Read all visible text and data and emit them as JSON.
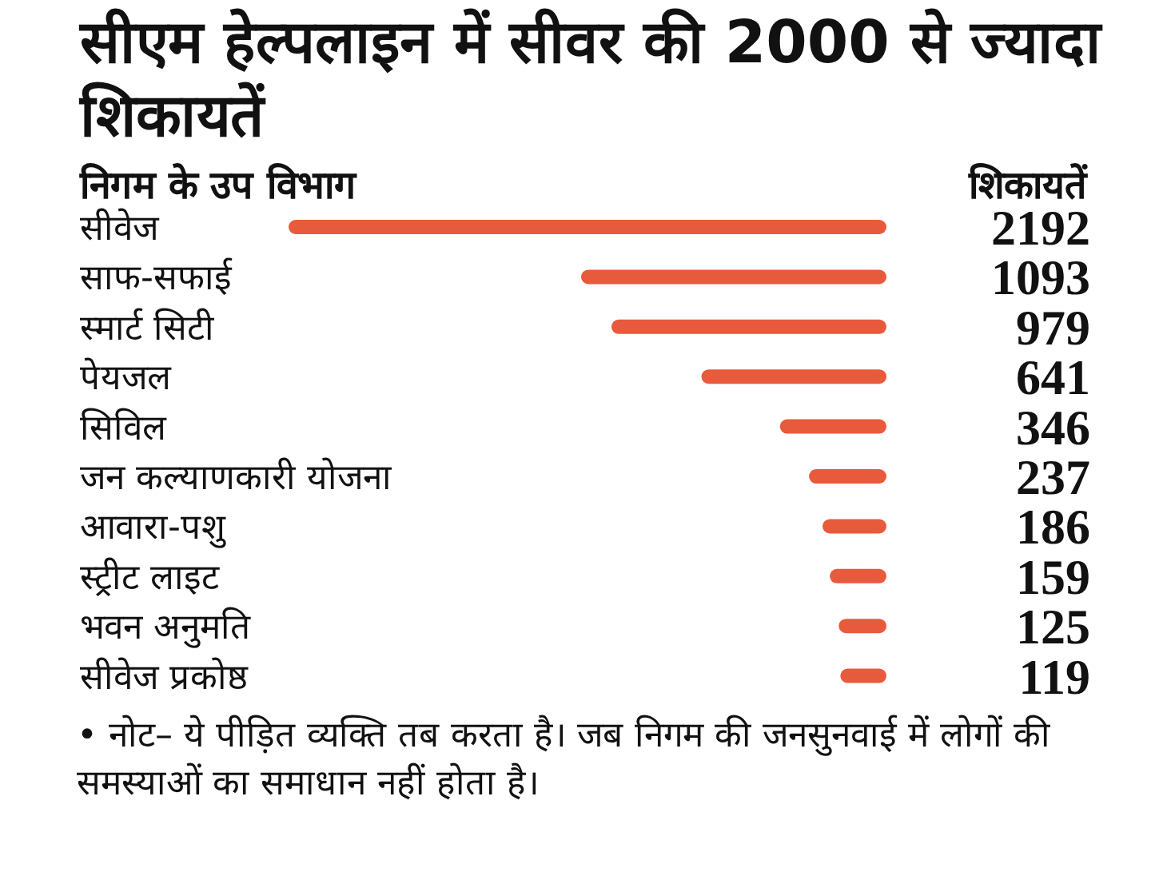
{
  "chart_data": {
    "type": "bar",
    "orientation": "horizontal",
    "title": "सीएम हेल्पलाइन में सीवर की 2000 से ज्यादा शिकायतें",
    "ylabel": "निगम के उप विभाग",
    "xlabel": "शिकायतें",
    "categories": [
      "सीवेज",
      "साफ-सफाई",
      "स्मार्ट सिटी",
      "पेयजल",
      "सिविल",
      "जन कल्याणकारी योजना",
      "आवारा-पशु",
      "स्ट्रीट लाइट",
      "भवन अनुमति",
      "सीवेज प्रकोष्ठ"
    ],
    "values": [
      2192,
      1093,
      979,
      641,
      346,
      237,
      186,
      159,
      125,
      119
    ],
    "color": "#e85a3c",
    "data_labels": true,
    "annotations": [
      "• नोट– ये पीड़ित व्यक्ति तब करता है। जब निगम की जनसुनवाई में लोगों की समस्याओं का समाधान नहीं होता है।"
    ]
  }
}
